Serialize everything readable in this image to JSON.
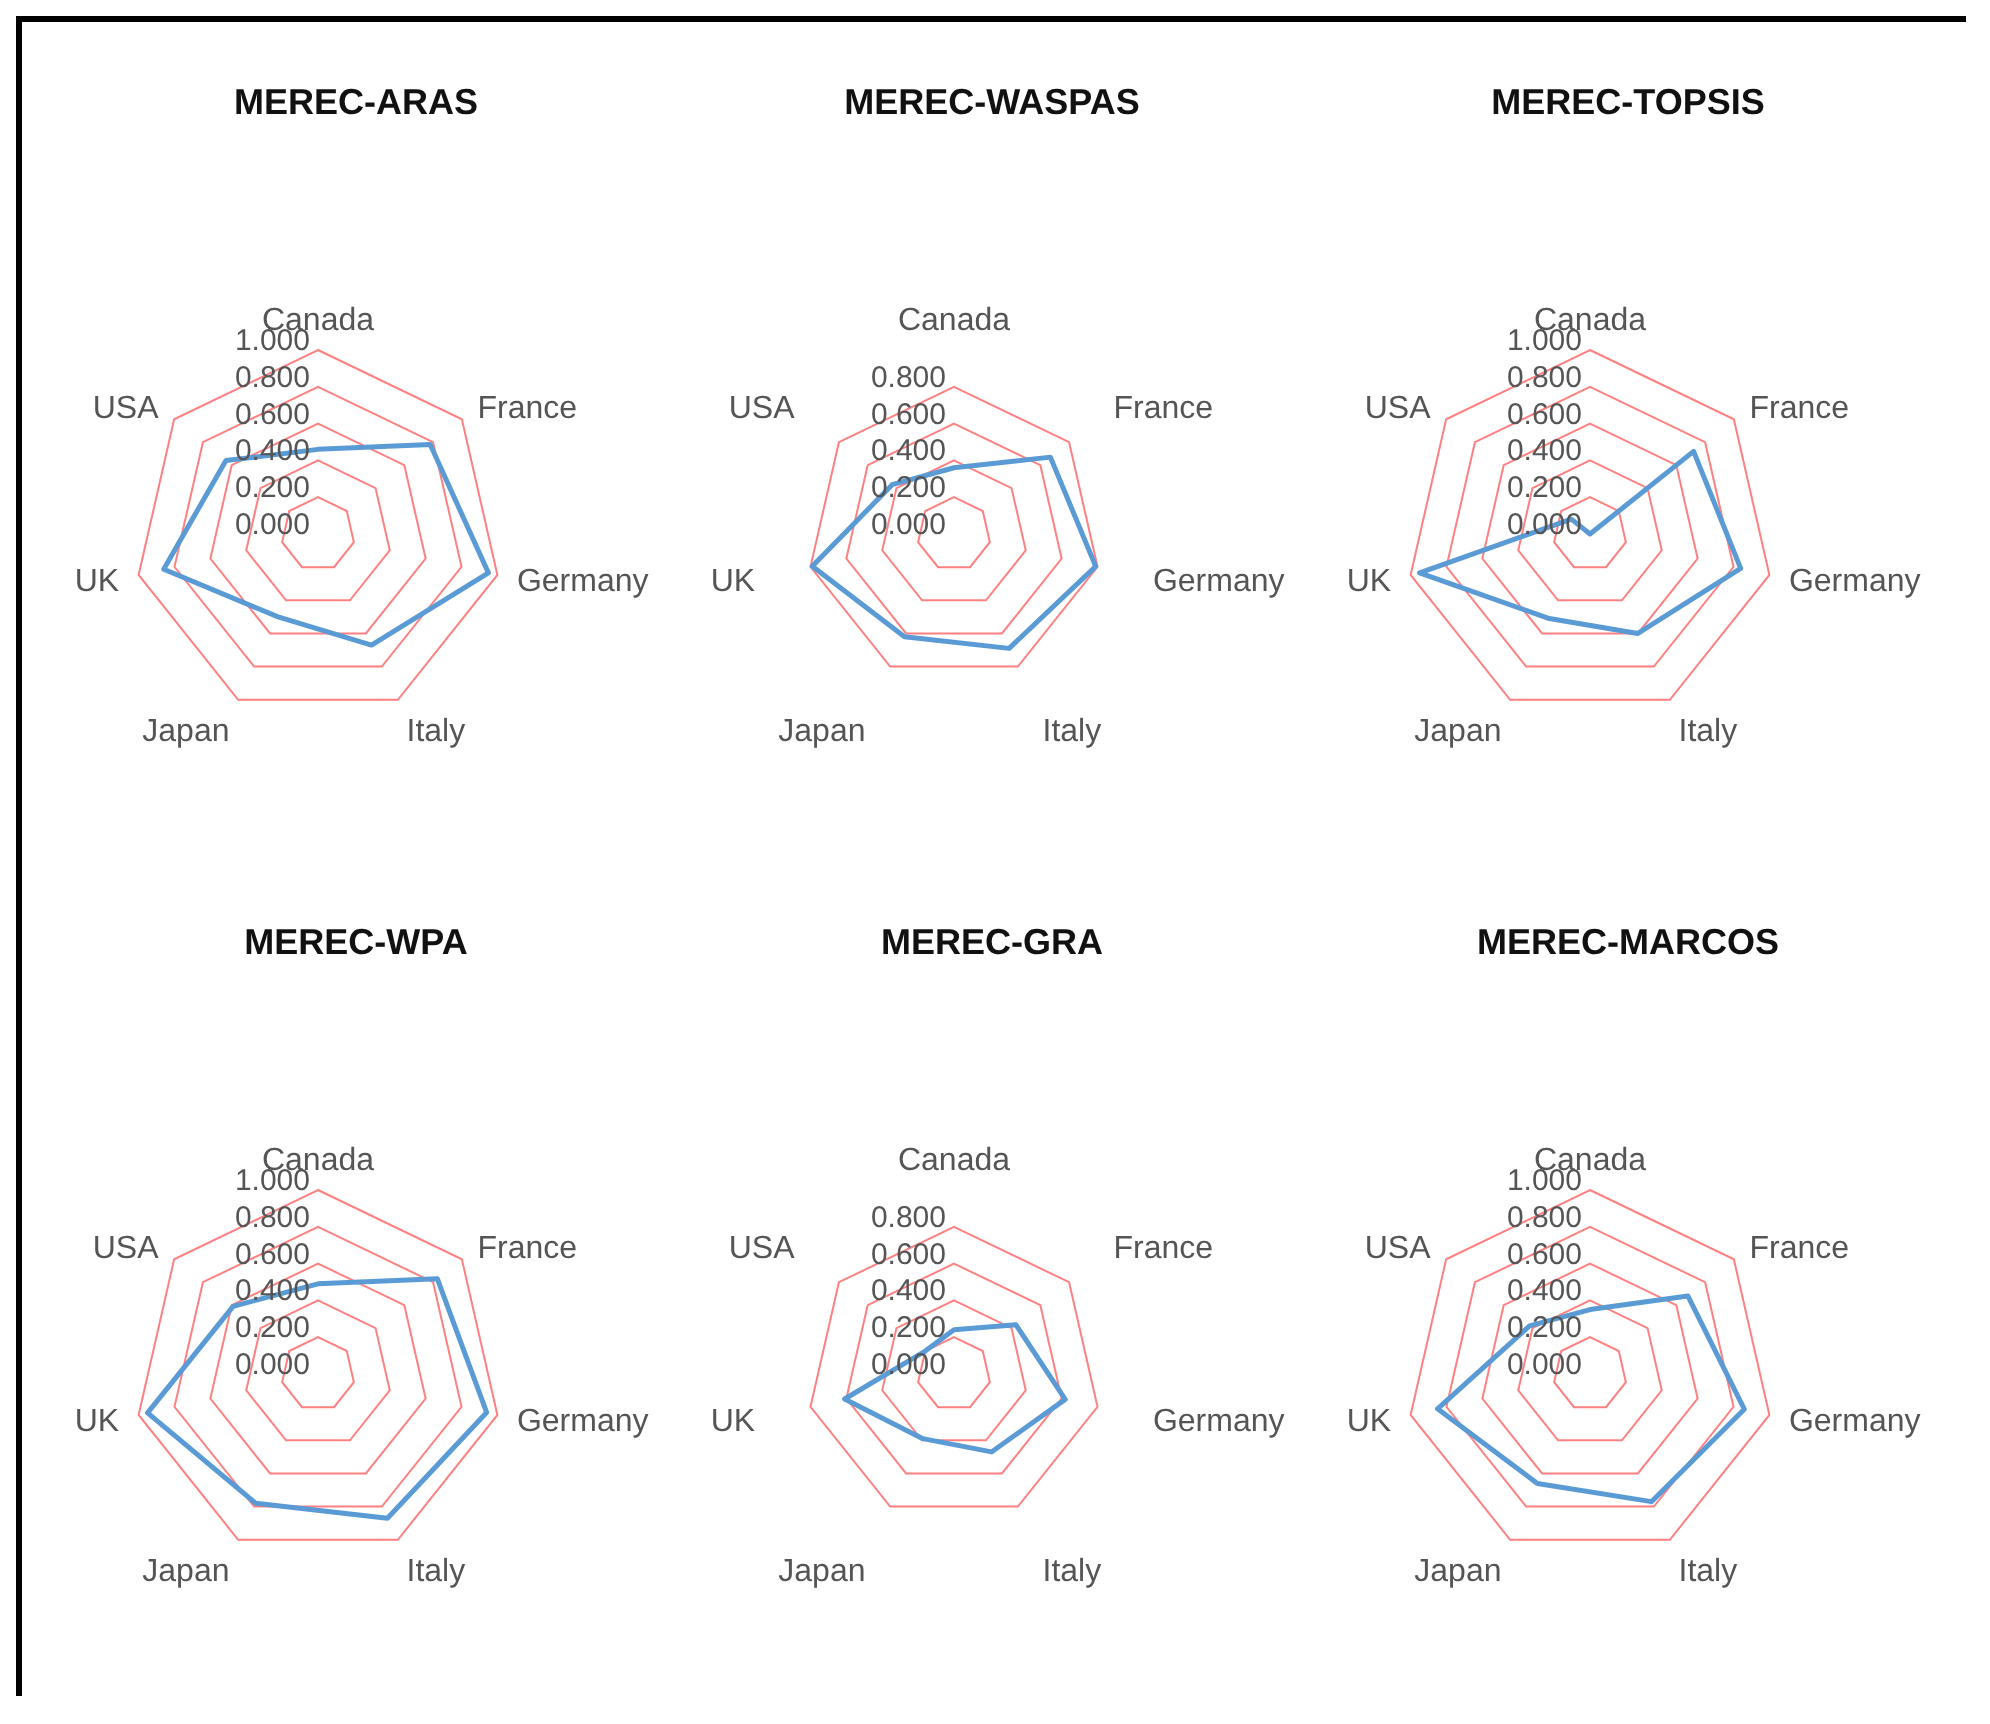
{
  "chart_data": [
    {
      "type": "radar",
      "title": "MEREC-ARAS",
      "categories": [
        "Canada",
        "France",
        "Germany",
        "Italy",
        "Japan",
        "UK",
        "USA"
      ],
      "series": [
        {
          "color": "#5b9bd5",
          "values": [
            0.46,
            0.78,
            0.95,
            0.67,
            0.5,
            0.86,
            0.64
          ]
        }
      ],
      "ylim": [
        0,
        1
      ],
      "yticks": [
        {
          "value": 0,
          "label": "0.000"
        },
        {
          "value": 0.2,
          "label": "0.200"
        },
        {
          "value": 0.4,
          "label": "0.400"
        },
        {
          "value": 0.6,
          "label": "0.600"
        },
        {
          "value": 0.8,
          "label": "0.800"
        },
        {
          "value": 1,
          "label": "1.000"
        }
      ],
      "grid": true
    },
    {
      "type": "radar",
      "title": "MEREC-WASPAS",
      "categories": [
        "Canada",
        "France",
        "Germany",
        "Italy",
        "Japan",
        "UK",
        "USA"
      ],
      "series": [
        {
          "color": "#5b9bd5",
          "values": [
            0.36,
            0.67,
            0.79,
            0.69,
            0.62,
            0.79,
            0.43
          ]
        }
      ],
      "ylim": [
        0,
        0.8
      ],
      "yticks": [
        {
          "value": 0,
          "label": "0.000"
        },
        {
          "value": 0.2,
          "label": "0.200"
        },
        {
          "value": 0.4,
          "label": "0.400"
        },
        {
          "value": 0.6,
          "label": "0.600"
        },
        {
          "value": 0.8,
          "label": "0.800"
        }
      ],
      "grid": true
    },
    {
      "type": "radar",
      "title": "MEREC-TOPSIS",
      "categories": [
        "Canada",
        "France",
        "Germany",
        "Italy",
        "Japan",
        "UK",
        "USA"
      ],
      "series": [
        {
          "color": "#5b9bd5",
          "values": [
            0.0,
            0.72,
            0.84,
            0.6,
            0.51,
            0.95,
            0.13
          ]
        }
      ],
      "ylim": [
        0,
        1
      ],
      "yticks": [
        {
          "value": 0,
          "label": "0.000"
        },
        {
          "value": 0.2,
          "label": "0.200"
        },
        {
          "value": 0.4,
          "label": "0.400"
        },
        {
          "value": 0.6,
          "label": "0.600"
        },
        {
          "value": 0.8,
          "label": "0.800"
        },
        {
          "value": 1,
          "label": "1.000"
        }
      ],
      "grid": true
    },
    {
      "type": "radar",
      "title": "MEREC-WPA",
      "categories": [
        "Canada",
        "France",
        "Germany",
        "Italy",
        "Japan",
        "UK",
        "USA"
      ],
      "series": [
        {
          "color": "#5b9bd5",
          "values": [
            0.49,
            0.83,
            0.94,
            0.87,
            0.78,
            0.95,
            0.59
          ]
        }
      ],
      "ylim": [
        0,
        1
      ],
      "yticks": [
        {
          "value": 0,
          "label": "0.000"
        },
        {
          "value": 0.2,
          "label": "0.200"
        },
        {
          "value": 0.4,
          "label": "0.400"
        },
        {
          "value": 0.6,
          "label": "0.600"
        },
        {
          "value": 0.8,
          "label": "0.800"
        },
        {
          "value": 1,
          "label": "1.000"
        }
      ],
      "grid": true
    },
    {
      "type": "radar",
      "title": "MEREC-GRA",
      "categories": [
        "Canada",
        "France",
        "Germany",
        "Italy",
        "Japan",
        "UK",
        "USA"
      ],
      "series": [
        {
          "color": "#5b9bd5",
          "values": [
            0.24,
            0.43,
            0.62,
            0.47,
            0.39,
            0.61,
            0.2
          ]
        }
      ],
      "ylim": [
        0,
        0.8
      ],
      "yticks": [
        {
          "value": 0,
          "label": "0.000"
        },
        {
          "value": 0.2,
          "label": "0.200"
        },
        {
          "value": 0.4,
          "label": "0.400"
        },
        {
          "value": 0.6,
          "label": "0.600"
        },
        {
          "value": 0.8,
          "label": "0.800"
        }
      ],
      "grid": true
    },
    {
      "type": "radar",
      "title": "MEREC-MARCOS",
      "categories": [
        "Canada",
        "France",
        "Germany",
        "Italy",
        "Japan",
        "UK",
        "USA"
      ],
      "series": [
        {
          "color": "#5b9bd5",
          "values": [
            0.35,
            0.68,
            0.86,
            0.77,
            0.66,
            0.85,
            0.42
          ]
        }
      ],
      "ylim": [
        0,
        1
      ],
      "yticks": [
        {
          "value": 0,
          "label": "0.000"
        },
        {
          "value": 0.2,
          "label": "0.200"
        },
        {
          "value": 0.4,
          "label": "0.400"
        },
        {
          "value": 0.6,
          "label": "0.600"
        },
        {
          "value": 0.8,
          "label": "0.800"
        },
        {
          "value": 1,
          "label": "1.000"
        }
      ],
      "grid": true
    }
  ]
}
